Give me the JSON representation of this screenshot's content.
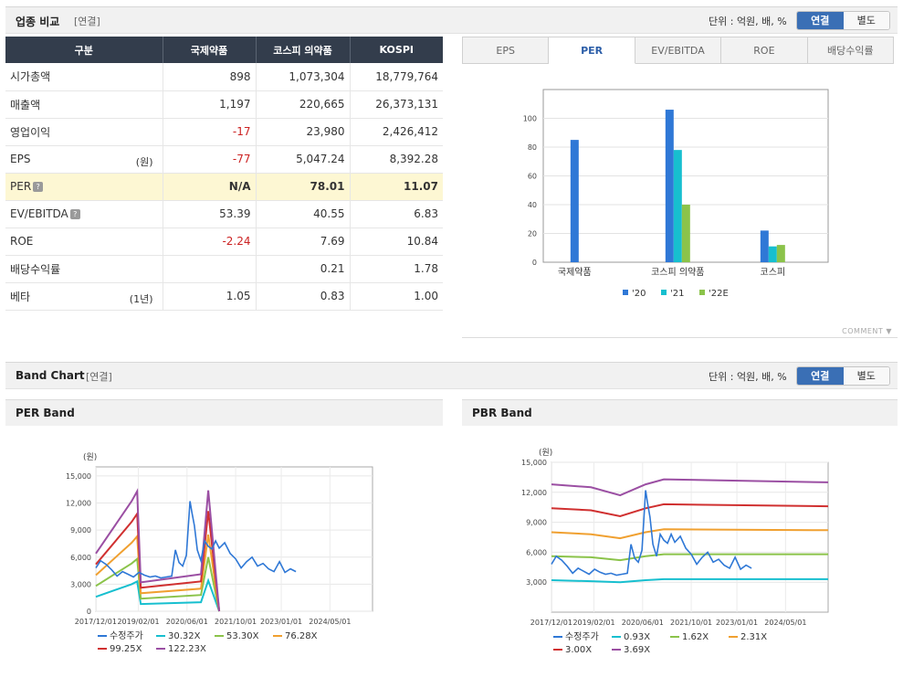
{
  "header": {
    "title": "업종 비교",
    "subtitle": "[연결]",
    "unit": "단위 : 억원, 배, %",
    "toggle_consolidated": "연결",
    "toggle_separate": "별도"
  },
  "compare_table": {
    "columns": [
      "구분",
      "국제약품",
      "코스피 의약품",
      "KOSPI"
    ],
    "rows": [
      {
        "label": "시가총액",
        "suffix": "",
        "values": [
          "898",
          "1,073,304",
          "18,779,764"
        ]
      },
      {
        "label": "매출액",
        "suffix": "",
        "values": [
          "1,197",
          "220,665",
          "26,373,131"
        ]
      },
      {
        "label": "영업이익",
        "suffix": "",
        "values": [
          "-17",
          "23,980",
          "2,426,412"
        ]
      },
      {
        "label": "EPS",
        "suffix": "(원)",
        "values": [
          "-77",
          "5,047.24",
          "8,392.28"
        ]
      },
      {
        "label": "PER",
        "suffix": "",
        "values": [
          "N/A",
          "78.01",
          "11.07"
        ]
      },
      {
        "label": "EV/EBITDA",
        "suffix": "",
        "values": [
          "53.39",
          "40.55",
          "6.83"
        ]
      },
      {
        "label": "ROE",
        "suffix": "",
        "values": [
          "-2.24",
          "7.69",
          "10.84"
        ]
      },
      {
        "label": "배당수익률",
        "suffix": "",
        "values": [
          "",
          "0.21",
          "1.78"
        ]
      },
      {
        "label": "베타",
        "suffix": "(1년)",
        "values": [
          "1.05",
          "0.83",
          "1.00"
        ]
      }
    ]
  },
  "metric_tabs": [
    "EPS",
    "PER",
    "EV/EBITDA",
    "ROE",
    "배당수익률"
  ],
  "comment_label": "COMMENT",
  "band_header": {
    "title": "Band Chart",
    "subtitle": "[연결]",
    "unit": "단위 : 억원, 배, %",
    "toggle_consolidated": "연결",
    "toggle_separate": "별도"
  },
  "per_band_title": "PER Band",
  "pbr_band_title": "PBR Band",
  "colors": {
    "bar_20": "#2f78d6",
    "bar_21": "#17bfcf",
    "bar_22e": "#8bc34a",
    "price": "#2f78d6",
    "band1": "#17bfcf",
    "band2": "#8bc34a",
    "band3": "#f0a030",
    "band4": "#d03030",
    "band5": "#9b4fa3"
  },
  "chart_data": [
    {
      "type": "bar",
      "title": "PER",
      "categories": [
        "국제약품",
        "코스피 의약품",
        "코스피"
      ],
      "series": [
        {
          "name": "'20",
          "values": [
            85,
            106,
            22
          ]
        },
        {
          "name": "'21",
          "values": [
            null,
            78,
            11
          ]
        },
        {
          "name": "'22E",
          "values": [
            null,
            40,
            12
          ]
        }
      ],
      "ylim": [
        0,
        120
      ],
      "yticks": [
        "0",
        "20",
        "40",
        "60",
        "80",
        "100"
      ],
      "grid": true,
      "legend": "bottom"
    },
    {
      "type": "line",
      "title": "PER Band",
      "ylabel": "(원)",
      "ylim": [
        0,
        16000
      ],
      "yticks": [
        "0",
        "3,000",
        "6,000",
        "9,000",
        "12,000",
        "15,000"
      ],
      "xticks": [
        "2017/12/01",
        "2019/02/01",
        "2020/06/01",
        "2021/10/01",
        "2023/01/01",
        "2024/05/01"
      ],
      "xlim": [
        2017.92,
        2025.5
      ],
      "series": [
        {
          "name": "수정주가",
          "x": [
            2017.92,
            2018.05,
            2018.2,
            2018.35,
            2018.5,
            2018.65,
            2018.8,
            2018.95,
            2019.1,
            2019.25,
            2019.4,
            2019.55,
            2019.7,
            2019.85,
            2020.0,
            2020.1,
            2020.2,
            2020.3,
            2020.4,
            2020.5,
            2020.55,
            2020.62,
            2020.7,
            2020.8,
            2020.9,
            2021.0,
            2021.1,
            2021.2,
            2021.3,
            2021.45,
            2021.6,
            2021.75,
            2021.9,
            2022.05,
            2022.2,
            2022.35,
            2022.5,
            2022.65,
            2022.8,
            2022.95,
            2023.1,
            2023.25,
            2023.4
          ],
          "values": [
            4800,
            5600,
            5200,
            4600,
            3900,
            4400,
            4100,
            3800,
            4300,
            4000,
            3800,
            3900,
            3700,
            3800,
            3900,
            6800,
            5400,
            5000,
            6200,
            12200,
            11000,
            9500,
            6800,
            5600,
            7800,
            7200,
            6900,
            7800,
            7000,
            7600,
            6400,
            5800,
            4800,
            5500,
            6000,
            5000,
            5300,
            4700,
            4400,
            5500,
            4300,
            4700,
            4400
          ]
        },
        {
          "name": "30.32X",
          "x": [
            2017.92,
            2018.9,
            2019.05,
            2019.15,
            2020.8,
            2021.0,
            2021.3
          ],
          "values": [
            1600,
            3000,
            3300,
            800,
            1000,
            3400,
            0
          ]
        },
        {
          "name": "53.30X",
          "x": [
            2017.92,
            2018.9,
            2019.05,
            2019.15,
            2020.8,
            2021.0,
            2021.3
          ],
          "values": [
            2800,
            5300,
            5800,
            1400,
            1800,
            6000,
            0
          ]
        },
        {
          "name": "76.28X",
          "x": [
            2017.92,
            2018.9,
            2019.05,
            2019.15,
            2020.8,
            2021.0,
            2021.3
          ],
          "values": [
            4000,
            7600,
            8300,
            2000,
            2500,
            8500,
            0
          ]
        },
        {
          "name": "99.25X",
          "x": [
            2017.92,
            2018.9,
            2019.05,
            2019.15,
            2020.8,
            2021.0,
            2021.3
          ],
          "values": [
            5200,
            9900,
            10800,
            2600,
            3300,
            11100,
            0
          ]
        },
        {
          "name": "122.23X",
          "x": [
            2017.92,
            2018.9,
            2019.05,
            2019.15,
            2020.8,
            2021.0,
            2021.3
          ],
          "values": [
            6400,
            12200,
            13300,
            3200,
            4100,
            13400,
            0
          ]
        }
      ],
      "legend": "bottom"
    },
    {
      "type": "line",
      "title": "PBR Band",
      "ylabel": "(원)",
      "ylim": [
        0,
        15000
      ],
      "yticks": [
        "3,000",
        "6,000",
        "9,000",
        "12,000",
        "15,000"
      ],
      "xticks": [
        "2017/12/01",
        "2019/02/01",
        "2020/06/01",
        "2021/10/01",
        "2023/01/01",
        "2024/05/01"
      ],
      "xlim": [
        2017.92,
        2025.5
      ],
      "series": [
        {
          "name": "수정주가",
          "x": [
            2017.92,
            2018.05,
            2018.2,
            2018.35,
            2018.5,
            2018.65,
            2018.8,
            2018.95,
            2019.1,
            2019.25,
            2019.4,
            2019.55,
            2019.7,
            2019.85,
            2020.0,
            2020.1,
            2020.2,
            2020.3,
            2020.4,
            2020.5,
            2020.55,
            2020.62,
            2020.7,
            2020.8,
            2020.9,
            2021.0,
            2021.1,
            2021.2,
            2021.3,
            2021.45,
            2021.6,
            2021.75,
            2021.9,
            2022.05,
            2022.2,
            2022.35,
            2022.5,
            2022.65,
            2022.8,
            2022.95,
            2023.1,
            2023.25,
            2023.4
          ],
          "values": [
            4800,
            5600,
            5200,
            4600,
            3900,
            4400,
            4100,
            3800,
            4300,
            4000,
            3800,
            3900,
            3700,
            3800,
            3900,
            6800,
            5400,
            5000,
            6200,
            12200,
            11000,
            9500,
            6800,
            5600,
            7800,
            7200,
            6900,
            7800,
            7000,
            7600,
            6400,
            5800,
            4800,
            5500,
            6000,
            5000,
            5300,
            4700,
            4400,
            5500,
            4300,
            4700,
            4400
          ]
        },
        {
          "name": "0.93X",
          "x": [
            2017.92,
            2019.0,
            2019.8,
            2020.5,
            2021.0,
            2025.5
          ],
          "values": [
            3200,
            3100,
            3000,
            3200,
            3300,
            3300
          ]
        },
        {
          "name": "1.62X",
          "x": [
            2017.92,
            2019.0,
            2019.8,
            2020.5,
            2021.0,
            2025.5
          ],
          "values": [
            5600,
            5500,
            5200,
            5600,
            5800,
            5800
          ]
        },
        {
          "name": "2.31X",
          "x": [
            2017.92,
            2019.0,
            2019.8,
            2020.5,
            2021.0,
            2025.5
          ],
          "values": [
            8000,
            7800,
            7400,
            8000,
            8300,
            8200
          ]
        },
        {
          "name": "3.00X",
          "x": [
            2017.92,
            2019.0,
            2019.8,
            2020.5,
            2021.0,
            2025.5
          ],
          "values": [
            10400,
            10200,
            9600,
            10400,
            10800,
            10600
          ]
        },
        {
          "name": "3.69X",
          "x": [
            2017.92,
            2019.0,
            2019.8,
            2020.5,
            2021.0,
            2025.5
          ],
          "values": [
            12800,
            12500,
            11700,
            12800,
            13300,
            13000
          ]
        }
      ],
      "legend": "bottom"
    }
  ]
}
